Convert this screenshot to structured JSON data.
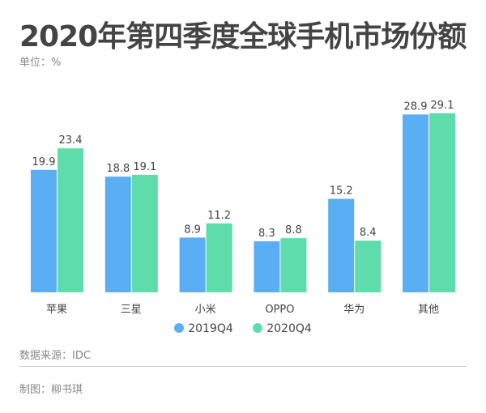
{
  "header": {
    "title": "2020年第四季度全球手机市场份额",
    "unit": "单位：%"
  },
  "footer": {
    "source": "数据来源：IDC",
    "author": "制图：柳书琪"
  },
  "colors": {
    "s2019": "#5aaef4",
    "s2020": "#5fdcab"
  },
  "chart_data": {
    "type": "bar",
    "title": "2020年第四季度全球手机市场份额",
    "ylabel": "%",
    "categories": [
      "苹果",
      "三星",
      "小米",
      "OPPO",
      "华为",
      "其他"
    ],
    "series": [
      {
        "name": "2019Q4",
        "values": [
          19.9,
          18.8,
          8.9,
          8.3,
          15.2,
          28.9
        ]
      },
      {
        "name": "2020Q4",
        "values": [
          23.4,
          19.1,
          11.2,
          8.8,
          8.4,
          29.1
        ]
      }
    ],
    "ylim": [
      0,
      29.1
    ],
    "grid": false,
    "legend": "bottom-center"
  }
}
